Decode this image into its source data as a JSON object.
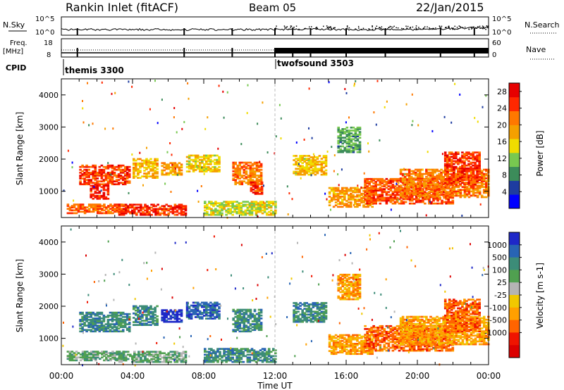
{
  "header": {
    "station": "Rankin Inlet (fitACF)",
    "beam": "Beam 05",
    "date": "22/Jan/2015"
  },
  "top_panels": {
    "nsky_label": "N.Sky",
    "nsky_ticks": [
      "10^5",
      "10^0"
    ],
    "nsearch_label": "N.Search",
    "nsearch_ticks": [
      "10^5",
      "10^0"
    ],
    "freq_label": "Freq.",
    "freq_unit": "[MHz]",
    "freq_ticks": [
      "18",
      "8"
    ],
    "nave_label": "Nave",
    "nave_ticks": [
      "60",
      "0"
    ],
    "cpid_label": "CPID",
    "cpid_modes": [
      {
        "name": "themis 3300",
        "start_hour": 0
      },
      {
        "name": "twofsound 3503",
        "start_hour": 12
      }
    ]
  },
  "colors": {
    "power_scale": [
      "#0000ff",
      "#1e3ca0",
      "#3c8c5a",
      "#78c850",
      "#f0dc00",
      "#f5a000",
      "#ff7800",
      "#ff2800",
      "#e60000"
    ],
    "velocity_scale": [
      "#1e28c8",
      "#2864b4",
      "#3c8c78",
      "#50a050",
      "#b4b4b4",
      "#f0c800",
      "#ffa000",
      "#ff6400",
      "#f01400",
      "#dc0000"
    ]
  },
  "chart_data": [
    {
      "type": "heatmap",
      "title": "Power",
      "ylabel": "Slant Range [km]",
      "xlabel": "Time UT",
      "x_ticks": [
        "00:00",
        "04:00",
        "08:00",
        "12:00",
        "16:00",
        "20:00",
        "00:00"
      ],
      "y_ticks": [
        "1000",
        "2000",
        "3000",
        "4000"
      ],
      "ylim": [
        180,
        4500
      ],
      "xlim": [
        0,
        24
      ],
      "colorbar_label": "Power [dB]",
      "colorbar_ticks": [
        "4",
        "8",
        "12",
        "16",
        "20",
        "24",
        "28"
      ],
      "clim": [
        0,
        30
      ],
      "regions": [
        {
          "t": [
            0.3,
            3.6
          ],
          "r": [
            300,
            600
          ],
          "level": 24
        },
        {
          "t": [
            1.0,
            3.8
          ],
          "r": [
            1200,
            1800
          ],
          "level": 26
        },
        {
          "t": [
            1.6,
            2.6
          ],
          "r": [
            750,
            1200
          ],
          "level": 28
        },
        {
          "t": [
            4.0,
            5.4
          ],
          "r": [
            1400,
            2000
          ],
          "level": 18
        },
        {
          "t": [
            5.6,
            6.8
          ],
          "r": [
            1500,
            1900
          ],
          "level": 20
        },
        {
          "t": [
            3.2,
            7.0
          ],
          "r": [
            250,
            600
          ],
          "level": 27
        },
        {
          "t": [
            7.0,
            8.8
          ],
          "r": [
            1600,
            2100
          ],
          "level": 16
        },
        {
          "t": [
            9.6,
            11.2
          ],
          "r": [
            1200,
            1900
          ],
          "level": 22
        },
        {
          "t": [
            10.6,
            11.2
          ],
          "r": [
            900,
            1300
          ],
          "level": 27
        },
        {
          "t": [
            8.0,
            12.0
          ],
          "r": [
            250,
            700
          ],
          "level": 14
        },
        {
          "t": [
            13.0,
            14.8
          ],
          "r": [
            1500,
            2100
          ],
          "level": 17
        },
        {
          "t": [
            15.0,
            17.5
          ],
          "r": [
            500,
            1100
          ],
          "level": 20
        },
        {
          "t": [
            17.0,
            22.0
          ],
          "r": [
            600,
            1400
          ],
          "level": 25
        },
        {
          "t": [
            19.0,
            24.0
          ],
          "r": [
            800,
            1700
          ],
          "level": 22
        },
        {
          "t": [
            21.5,
            23.5
          ],
          "r": [
            1200,
            2200
          ],
          "level": 26
        },
        {
          "t": [
            15.5,
            16.8
          ],
          "r": [
            2200,
            3000
          ],
          "level": 9
        }
      ]
    },
    {
      "type": "heatmap",
      "title": "Velocity",
      "ylabel": "Slant Range [km]",
      "xlabel": "Time UT",
      "x_ticks": [
        "00:00",
        "04:00",
        "08:00",
        "12:00",
        "16:00",
        "20:00",
        "00:00"
      ],
      "y_ticks": [
        "1000",
        "2000",
        "3000",
        "4000"
      ],
      "ylim": [
        180,
        4500
      ],
      "xlim": [
        0,
        24
      ],
      "colorbar_label": "Velocity [m s-1]",
      "colorbar_ticks": [
        "1000",
        "500",
        "100",
        "25",
        "-25",
        "-100",
        "-500",
        "-1000"
      ],
      "regions": [
        {
          "t": [
            0.3,
            3.6
          ],
          "r": [
            300,
            600
          ],
          "level": 3
        },
        {
          "t": [
            1.0,
            3.8
          ],
          "r": [
            1200,
            1800
          ],
          "level": 2
        },
        {
          "t": [
            4.0,
            5.4
          ],
          "r": [
            1400,
            2000
          ],
          "level": 2
        },
        {
          "t": [
            5.6,
            6.8
          ],
          "r": [
            1500,
            1900
          ],
          "level": 0
        },
        {
          "t": [
            3.2,
            7.0
          ],
          "r": [
            250,
            600
          ],
          "level": 3
        },
        {
          "t": [
            7.0,
            8.8
          ],
          "r": [
            1600,
            2100
          ],
          "level": 1
        },
        {
          "t": [
            9.6,
            11.2
          ],
          "r": [
            1200,
            1900
          ],
          "level": 2
        },
        {
          "t": [
            8.0,
            12.0
          ],
          "r": [
            250,
            700
          ],
          "level": 2
        },
        {
          "t": [
            13.0,
            14.8
          ],
          "r": [
            1500,
            2100
          ],
          "level": 2
        },
        {
          "t": [
            15.0,
            17.5
          ],
          "r": [
            500,
            1100
          ],
          "level": 6
        },
        {
          "t": [
            17.0,
            22.0
          ],
          "r": [
            600,
            1400
          ],
          "level": 7
        },
        {
          "t": [
            19.0,
            24.0
          ],
          "r": [
            800,
            1700
          ],
          "level": 6
        },
        {
          "t": [
            21.5,
            23.5
          ],
          "r": [
            1200,
            2200
          ],
          "level": 7
        },
        {
          "t": [
            15.5,
            16.8
          ],
          "r": [
            2200,
            3000
          ],
          "level": 6
        }
      ]
    }
  ]
}
